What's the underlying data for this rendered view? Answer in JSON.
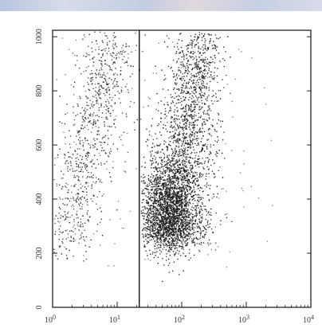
{
  "chart_data": {
    "type": "scatter",
    "title": "",
    "xlabel": "",
    "ylabel": "",
    "x_scale": "log",
    "xlim": [
      1,
      10000
    ],
    "ylim": [
      0,
      1024
    ],
    "x_ticks": [
      {
        "value": 1,
        "label": "10",
        "exp": "0"
      },
      {
        "value": 10,
        "label": "10",
        "exp": "1"
      },
      {
        "value": 100,
        "label": "10",
        "exp": "2"
      },
      {
        "value": 1000,
        "label": "10",
        "exp": "3"
      },
      {
        "value": 10000,
        "label": "10",
        "exp": "4"
      }
    ],
    "y_ticks": [
      {
        "value": 0,
        "label": "0"
      },
      {
        "value": 200,
        "label": "200"
      },
      {
        "value": 400,
        "label": "400"
      },
      {
        "value": 600,
        "label": "600"
      },
      {
        "value": 800,
        "label": "800"
      },
      {
        "value": 1000,
        "label": "1000"
      }
    ],
    "gate_x": 22,
    "clusters": [
      {
        "name": "",
        "x_center": 3,
        "y_range": [
          180,
          1000
        ],
        "count": 900,
        "color": "#333333"
      },
      {
        "name": "",
        "x_center": 70,
        "y_range": [
          200,
          1020
        ],
        "count": 2600,
        "color": "#111111"
      }
    ],
    "grid": false,
    "legend": "none"
  }
}
